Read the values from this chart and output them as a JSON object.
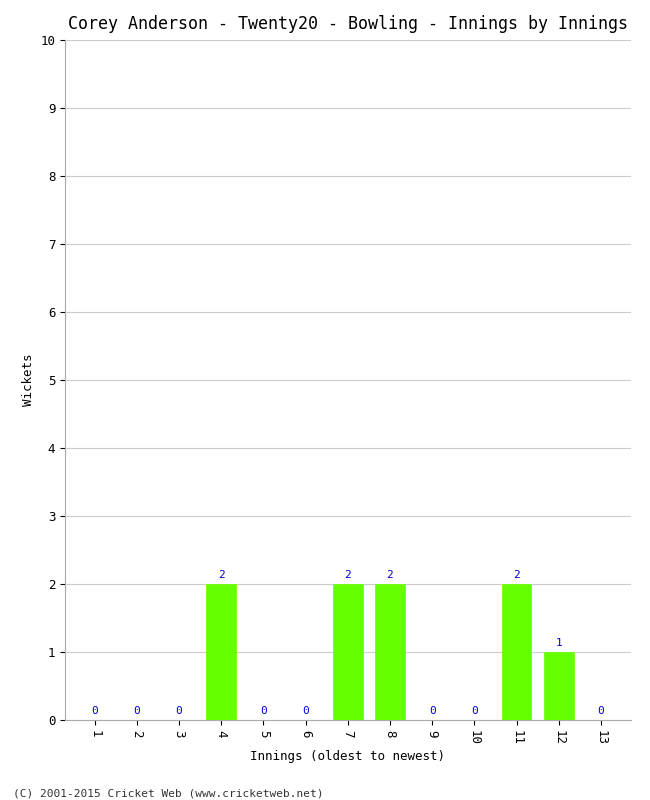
{
  "title": "Corey Anderson - Twenty20 - Bowling - Innings by Innings",
  "xlabel": "Innings (oldest to newest)",
  "ylabel": "Wickets",
  "categories": [
    1,
    2,
    3,
    4,
    5,
    6,
    7,
    8,
    9,
    10,
    11,
    12,
    13
  ],
  "values": [
    0,
    0,
    0,
    2,
    0,
    0,
    2,
    2,
    0,
    0,
    2,
    1,
    0
  ],
  "bar_color": "#66ff00",
  "bar_edge_color": "#66ff00",
  "label_color": "#0000cc",
  "background_color": "#ffffff",
  "plot_bg_color": "#ffffff",
  "ylim": [
    0,
    10
  ],
  "yticks": [
    0,
    1,
    2,
    3,
    4,
    5,
    6,
    7,
    8,
    9,
    10
  ],
  "grid_color": "#cccccc",
  "footer": "(C) 2001-2015 Cricket Web (www.cricketweb.net)",
  "title_fontsize": 12,
  "axis_label_fontsize": 9,
  "tick_fontsize": 9,
  "value_label_fontsize": 8,
  "footer_fontsize": 8
}
